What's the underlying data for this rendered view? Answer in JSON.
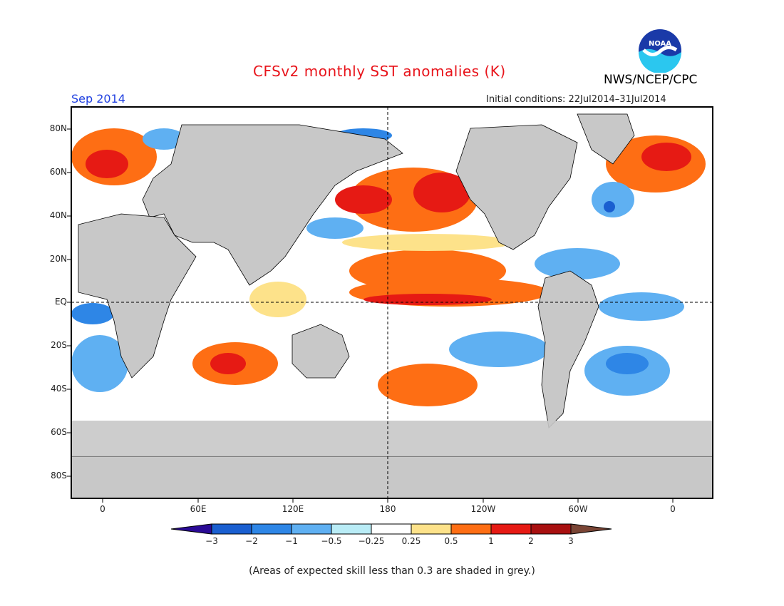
{
  "header": {
    "title": "CFSv2 monthly SST anomalies (K)",
    "month": "Sep 2014",
    "initial_conditions": "Initial conditions: 22Jul2014–31Jul2014",
    "org": "NWS/NCEP/CPC",
    "logo_text": "NOAA"
  },
  "axes": {
    "lat_labels": [
      "80N",
      "60N",
      "40N",
      "20N",
      "EQ",
      "20S",
      "40S",
      "60S",
      "80S"
    ],
    "lon_labels": [
      "0",
      "60E",
      "120E",
      "180",
      "120W",
      "60W",
      "0"
    ]
  },
  "colorbar": {
    "labels": [
      "−3",
      "−2",
      "−1",
      "−0.5",
      "−0.25",
      "0.25",
      "0.5",
      "1",
      "2",
      "3"
    ],
    "colors": [
      "#2a0a96",
      "#1a5fd0",
      "#2e86e6",
      "#5fb0f2",
      "#b9ecf6",
      "#ffffff",
      "#fde28a",
      "#fe6e14",
      "#e61a14",
      "#a81010",
      "#7a4535"
    ]
  },
  "footnote": "(Areas of expected skill less than 0.3 are shaded in grey.)"
}
